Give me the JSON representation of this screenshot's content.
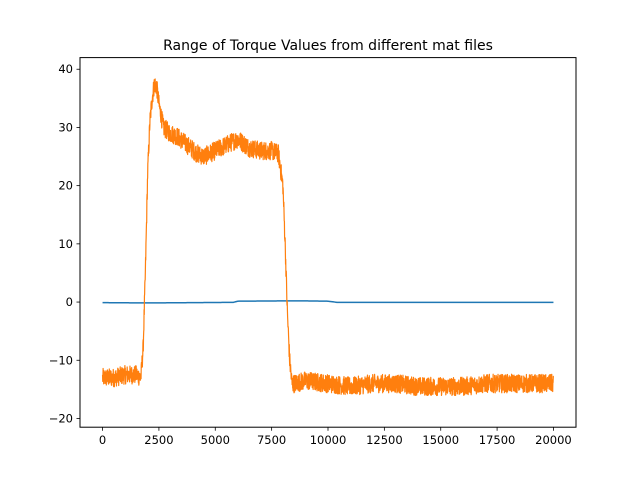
{
  "chart_data": {
    "type": "line",
    "title": "Range of Torque Values from different mat files",
    "xlabel": "",
    "ylabel": "",
    "xlim": [
      -1000,
      21000
    ],
    "ylim": [
      -21.5,
      42
    ],
    "xticks": [
      0,
      2500,
      5000,
      7500,
      10000,
      12500,
      15000,
      17500,
      20000
    ],
    "yticks": [
      -20,
      -10,
      0,
      10,
      20,
      30,
      40
    ],
    "xtick_labels": [
      "0",
      "2500",
      "5000",
      "7500",
      "10000",
      "12500",
      "15000",
      "17500",
      "20000"
    ],
    "ytick_labels": [
      "−20",
      "−10",
      "0",
      "10",
      "20",
      "30",
      "40"
    ],
    "grid": false,
    "series": [
      {
        "color": "#1f77b4",
        "x": [
          0,
          2000,
          4000,
          5800,
          6000,
          8000,
          9000,
          10000,
          10400,
          12000,
          15000,
          18000,
          20000
        ],
        "y": [
          -0.1,
          -0.15,
          -0.1,
          -0.05,
          0.15,
          0.2,
          0.2,
          0.15,
          -0.05,
          -0.05,
          -0.05,
          -0.05,
          -0.05
        ]
      },
      {
        "color": "#ff7f0e",
        "x": [
          0,
          500,
          1000,
          1500,
          1700,
          1800,
          1900,
          2000,
          2100,
          2200,
          2300,
          2400,
          2500,
          2700,
          3000,
          3300,
          3600,
          3900,
          4200,
          4500,
          5000,
          5500,
          6000,
          6500,
          7000,
          7500,
          7800,
          8000,
          8100,
          8200,
          8300,
          8400,
          8500,
          9000,
          10000,
          11000,
          12000,
          13000,
          14000,
          15000,
          16000,
          17000,
          18000,
          19000,
          20000
        ],
        "y": [
          -13,
          -13,
          -12.5,
          -12.5,
          -13,
          -8,
          5,
          22,
          31,
          35,
          37.5,
          37,
          34,
          30,
          29,
          28.5,
          27.5,
          26.5,
          25.5,
          25,
          26,
          27,
          28,
          26.5,
          26,
          26,
          25.5,
          20,
          10,
          -2,
          -10,
          -14,
          -14,
          -13.5,
          -14,
          -14.5,
          -14,
          -14,
          -14.5,
          -14.5,
          -14.5,
          -14,
          -14,
          -14,
          -14
        ]
      }
    ]
  }
}
